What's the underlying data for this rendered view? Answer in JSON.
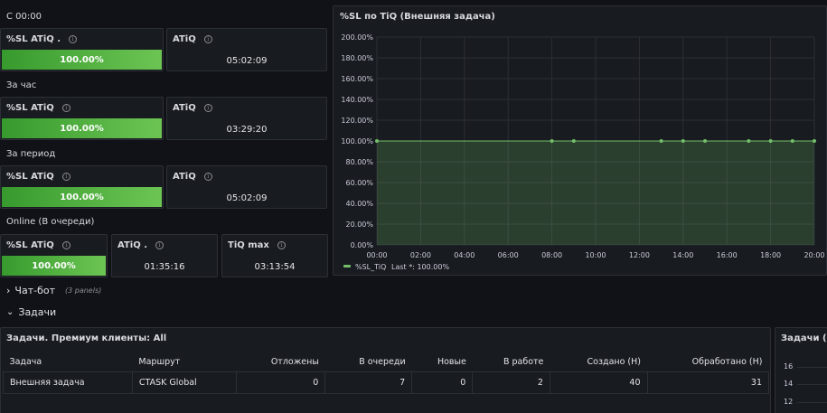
{
  "groups": {
    "since_midnight": "С 00:00",
    "per_hour": "За час",
    "per_period": "За период",
    "online": "Online (В очереди)"
  },
  "stats": {
    "g1_sl": {
      "title": "%SL ATiQ .",
      "value": "100.00%"
    },
    "g1_atiq": {
      "title": "ATiQ",
      "value": "05:02:09"
    },
    "g2_sl": {
      "title": "%SL ATiQ",
      "value": "100.00%"
    },
    "g2_atiq": {
      "title": "ATiQ",
      "value": "03:29:20"
    },
    "g3_sl": {
      "title": "%SL ATiQ",
      "value": "100.00%"
    },
    "g3_atiq": {
      "title": "ATiQ",
      "value": "05:02:09"
    },
    "g4_sl": {
      "title": "%SL ATiQ",
      "value": "100.00%"
    },
    "g4_atiq": {
      "title": "ATiQ .",
      "value": "01:35:16"
    },
    "g4_tiq": {
      "title": "TiQ max",
      "value": "03:13:54"
    }
  },
  "info_glyph": "i",
  "sections": {
    "chatbot": {
      "arrow": "›",
      "title": "Чат-бот",
      "note": "(3 panels)"
    },
    "tasks": {
      "arrow": "⌄",
      "title": "Задачи"
    }
  },
  "table_panel": {
    "title": "Задачи. Премиум клиенты: All",
    "headers": [
      "Задача",
      "Маршрут",
      "Отложены",
      "В очереди",
      "Новые",
      "В работе",
      "Создано (Н)",
      "Обработано (Н)"
    ],
    "rows": [
      [
        "Внешняя задача",
        "CTASK Global",
        "0",
        "7",
        "0",
        "2",
        "40",
        "31"
      ]
    ]
  },
  "right_panel": {
    "title": "Задачи (Вн",
    "ticks": [
      "16",
      "14",
      "12"
    ]
  },
  "chart_data": {
    "type": "area",
    "title": "%SL по TiQ (Внешняя задача)",
    "ylim": [
      0,
      200
    ],
    "y_ticks": [
      0,
      20,
      40,
      60,
      80,
      100,
      120,
      140,
      160,
      180,
      200
    ],
    "y_tick_labels": [
      "0.00%",
      "20.00%",
      "40.00%",
      "60.00%",
      "80.00%",
      "100.00%",
      "120.00%",
      "140.00%",
      "160.00%",
      "180.00%",
      "200.00%"
    ],
    "xlim": [
      0,
      20
    ],
    "x_ticks": [
      0,
      2,
      4,
      6,
      8,
      10,
      12,
      14,
      16,
      18,
      20
    ],
    "x_tick_labels": [
      "00:00",
      "02:00",
      "04:00",
      "06:00",
      "08:00",
      "10:00",
      "12:00",
      "14:00",
      "16:00",
      "18:00",
      "20:00"
    ],
    "series": [
      {
        "name": "%SL_TiQ",
        "color": "#73bf69",
        "x": [
          0,
          8,
          9,
          13,
          14,
          15,
          17,
          18,
          19,
          20
        ],
        "values": [
          100,
          100,
          100,
          100,
          100,
          100,
          100,
          100,
          100,
          100
        ]
      }
    ],
    "legend": {
      "name": "%SL_TiQ",
      "stat": "Last *: 100.00%"
    },
    "grid": true
  }
}
